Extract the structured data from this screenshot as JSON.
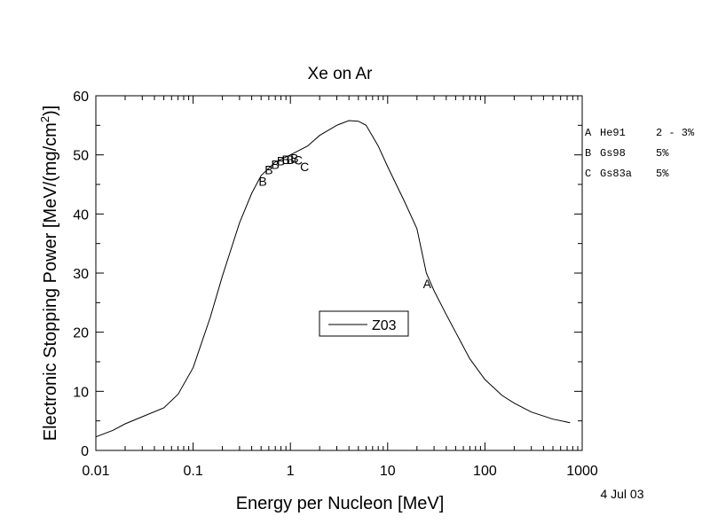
{
  "chart_data": {
    "type": "line",
    "title": "Xe on Ar",
    "xlabel": "Energy per Nucleon [MeV]",
    "ylabel_main": "Electronic Stopping Power [MeV/(mg/cm",
    "ylabel_sup": "2",
    "ylabel_end": ")]",
    "xscale": "log",
    "xlim": [
      0.01,
      1000
    ],
    "ylim": [
      0,
      60
    ],
    "x_tick_labels": [
      "0.01",
      "0.1",
      "1",
      "10",
      "100",
      "1000"
    ],
    "y_tick_labels": [
      "0",
      "10",
      "20",
      "30",
      "40",
      "50",
      "60"
    ],
    "x_ticks": [
      0.01,
      0.1,
      1,
      10,
      100,
      1000
    ],
    "y_ticks": [
      0,
      10,
      20,
      30,
      40,
      50,
      60
    ],
    "grid": false,
    "legend": {
      "placement": "center",
      "label": "Z03"
    },
    "series": [
      {
        "name": "Z03",
        "x": [
          0.01,
          0.015,
          0.02,
          0.03,
          0.05,
          0.07,
          0.1,
          0.15,
          0.2,
          0.3,
          0.4,
          0.5,
          0.7,
          1.0,
          1.5,
          2,
          3,
          4,
          5,
          6,
          8,
          10,
          15,
          20,
          25,
          30,
          40,
          50,
          70,
          100,
          150,
          200,
          300,
          500,
          750
        ],
        "y": [
          2.3,
          3.4,
          4.5,
          5.7,
          7.2,
          9.5,
          14.0,
          22.5,
          29.5,
          38.5,
          43.5,
          46.5,
          48.8,
          50.0,
          51.5,
          53.3,
          55.0,
          55.8,
          55.7,
          55.0,
          51.5,
          48.0,
          42.0,
          37.5,
          30.0,
          27.0,
          23.0,
          20.0,
          15.5,
          12.0,
          9.3,
          8.0,
          6.5,
          5.3,
          4.7
        ]
      }
    ],
    "markers": [
      {
        "label": "A",
        "x": 25.5,
        "y": 28.2
      },
      {
        "label": "B",
        "x": 0.52,
        "y": 45.5
      },
      {
        "label": "B",
        "x": 0.6,
        "y": 47.5
      },
      {
        "label": "B",
        "x": 0.7,
        "y": 48.4
      },
      {
        "label": "B",
        "x": 0.8,
        "y": 49.0
      },
      {
        "label": "B",
        "x": 0.9,
        "y": 49.2
      },
      {
        "label": "B",
        "x": 1.0,
        "y": 49.2
      },
      {
        "label": "B",
        "x": 1.1,
        "y": 49.4
      },
      {
        "label": "C",
        "x": 1.2,
        "y": 49.1
      },
      {
        "label": "C",
        "x": 1.4,
        "y": 48.0
      }
    ],
    "reference_legend": [
      {
        "letter": "A",
        "source": "He91",
        "error": "2 - 3%"
      },
      {
        "letter": "B",
        "source": "Gs98",
        "error": "5%"
      },
      {
        "letter": "C",
        "source": "Gs83a",
        "error": "5%"
      }
    ],
    "date": "4 Jul 03"
  }
}
